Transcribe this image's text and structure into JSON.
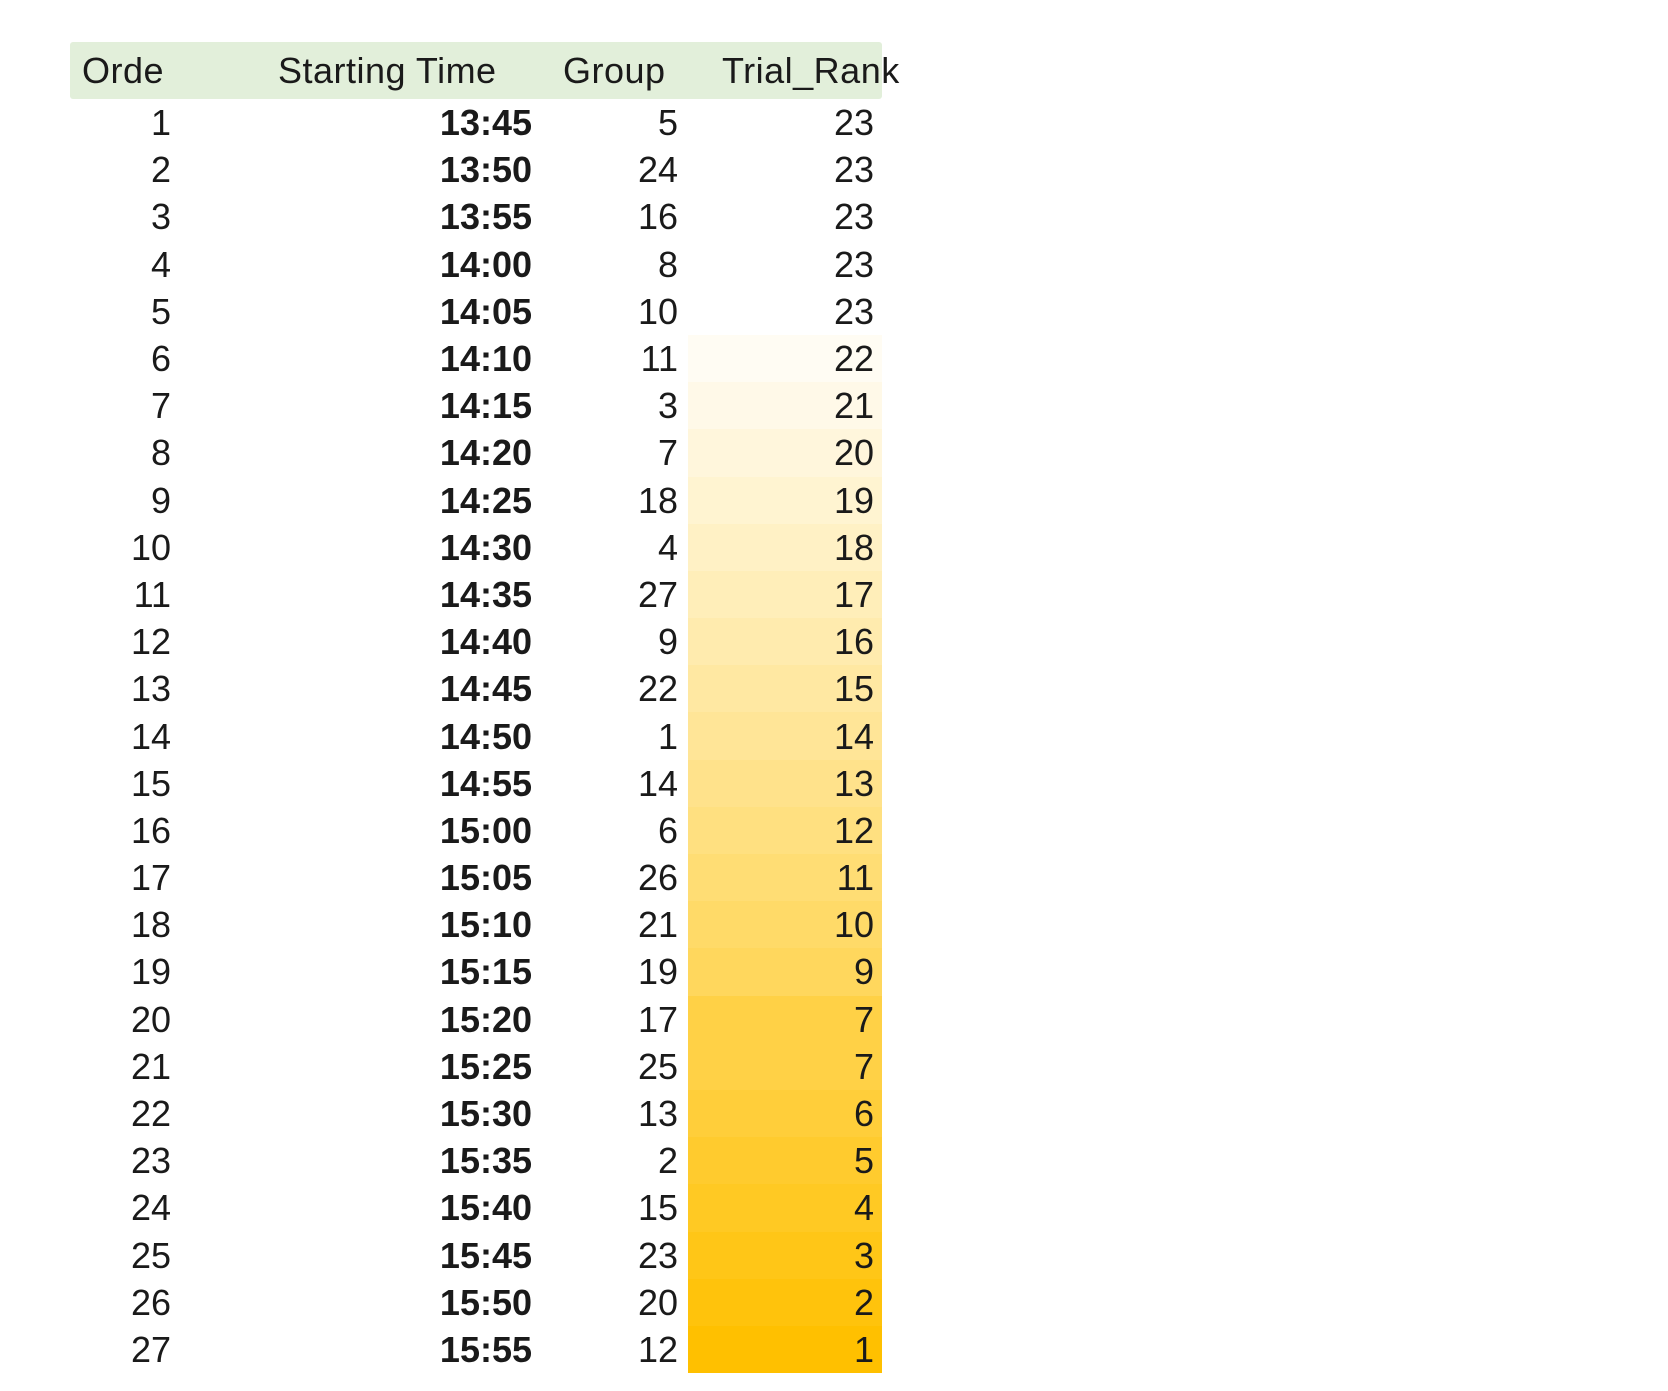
{
  "columns": [
    "Orde",
    "Starting Time",
    "Group",
    "Trial_Rank"
  ],
  "rows": [
    {
      "order": "1",
      "time": "13:45",
      "group": "5",
      "rank": "23"
    },
    {
      "order": "2",
      "time": "13:50",
      "group": "24",
      "rank": "23"
    },
    {
      "order": "3",
      "time": "13:55",
      "group": "16",
      "rank": "23"
    },
    {
      "order": "4",
      "time": "14:00",
      "group": "8",
      "rank": "23"
    },
    {
      "order": "5",
      "time": "14:05",
      "group": "10",
      "rank": "23"
    },
    {
      "order": "6",
      "time": "14:10",
      "group": "11",
      "rank": "22"
    },
    {
      "order": "7",
      "time": "14:15",
      "group": "3",
      "rank": "21"
    },
    {
      "order": "8",
      "time": "14:20",
      "group": "7",
      "rank": "20"
    },
    {
      "order": "9",
      "time": "14:25",
      "group": "18",
      "rank": "19"
    },
    {
      "order": "10",
      "time": "14:30",
      "group": "4",
      "rank": "18"
    },
    {
      "order": "11",
      "time": "14:35",
      "group": "27",
      "rank": "17"
    },
    {
      "order": "12",
      "time": "14:40",
      "group": "9",
      "rank": "16"
    },
    {
      "order": "13",
      "time": "14:45",
      "group": "22",
      "rank": "15"
    },
    {
      "order": "14",
      "time": "14:50",
      "group": "1",
      "rank": "14"
    },
    {
      "order": "15",
      "time": "14:55",
      "group": "14",
      "rank": "13"
    },
    {
      "order": "16",
      "time": "15:00",
      "group": "6",
      "rank": "12"
    },
    {
      "order": "17",
      "time": "15:05",
      "group": "26",
      "rank": "11"
    },
    {
      "order": "18",
      "time": "15:10",
      "group": "21",
      "rank": "10"
    },
    {
      "order": "19",
      "time": "15:15",
      "group": "19",
      "rank": "9"
    },
    {
      "order": "20",
      "time": "15:20",
      "group": "17",
      "rank": "7"
    },
    {
      "order": "21",
      "time": "15:25",
      "group": "25",
      "rank": "7"
    },
    {
      "order": "22",
      "time": "15:30",
      "group": "13",
      "rank": "6"
    },
    {
      "order": "23",
      "time": "15:35",
      "group": "2",
      "rank": "5"
    },
    {
      "order": "24",
      "time": "15:40",
      "group": "15",
      "rank": "4"
    },
    {
      "order": "25",
      "time": "15:45",
      "group": "23",
      "rank": "3"
    },
    {
      "order": "26",
      "time": "15:50",
      "group": "20",
      "rank": "2"
    },
    {
      "order": "27",
      "time": "15:55",
      "group": "12",
      "rank": "1"
    }
  ],
  "colors": {
    "header_bg": "#e2efda",
    "scale_low": "#ffffff",
    "scale_high": "#ffc000"
  }
}
